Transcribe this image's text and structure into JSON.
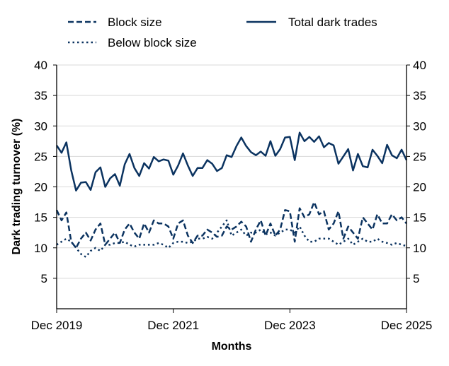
{
  "chart_data": {
    "type": "line",
    "title": "",
    "xlabel": "Months",
    "ylabel": "Dark trading turnover (%)",
    "ylim": [
      0,
      40
    ],
    "yticks": [
      5,
      10,
      15,
      20,
      25,
      30,
      35,
      40
    ],
    "xticks": [
      "Dec 2019",
      "Dec 2021",
      "Dec 2023",
      "Dec 2025"
    ],
    "x_range": [
      "Dec 2019",
      "Dec 2025"
    ],
    "frequency": "monthly",
    "grid": "horizontal",
    "right_axis_mirror": true,
    "legend_position": "top",
    "color": "#0b3360",
    "series": [
      {
        "name": "Block size",
        "style": "dashed",
        "values": [
          16.2,
          14.5,
          15.8,
          11.0,
          10.0,
          11.5,
          12.5,
          11.2,
          13.0,
          14.0,
          10.5,
          11.5,
          12.5,
          10.8,
          13.0,
          14.0,
          12.5,
          11.5,
          14.0,
          12.5,
          14.5,
          14.0,
          14.0,
          13.5,
          11.5,
          14.0,
          14.5,
          12.0,
          10.8,
          12.0,
          12.0,
          13.0,
          12.5,
          11.8,
          12.0,
          13.5,
          13.0,
          13.5,
          14.3,
          13.5,
          11.0,
          13.0,
          14.5,
          12.0,
          14.0,
          12.0,
          13.0,
          16.2,
          16.0,
          11.0,
          16.5,
          15.0,
          15.5,
          17.5,
          15.5,
          16.0,
          13.0,
          14.0,
          16.0,
          11.5,
          13.5,
          12.5,
          11.5,
          15.0,
          14.0,
          13.0,
          15.5,
          14.0,
          14.0,
          15.5,
          14.5,
          15.0,
          14.0
        ]
      },
      {
        "name": "Below block size",
        "style": "dotted",
        "values": [
          10.5,
          11.0,
          11.5,
          11.0,
          10.0,
          9.0,
          8.5,
          9.5,
          10.0,
          9.5,
          10.5,
          10.5,
          10.8,
          10.8,
          11.0,
          10.5,
          10.2,
          10.5,
          10.5,
          10.5,
          10.5,
          10.8,
          10.5,
          10.0,
          10.8,
          11.0,
          11.0,
          10.8,
          11.0,
          11.5,
          11.5,
          11.8,
          11.5,
          12.5,
          13.5,
          14.5,
          12.0,
          12.5,
          13.0,
          12.0,
          12.5,
          12.5,
          13.0,
          12.2,
          12.5,
          12.0,
          12.5,
          13.0,
          13.0,
          12.5,
          13.5,
          12.0,
          11.0,
          11.0,
          11.5,
          11.5,
          11.5,
          11.0,
          10.5,
          11.0,
          11.5,
          10.5,
          11.0,
          11.5,
          11.0,
          11.0,
          11.5,
          11.0,
          10.8,
          10.5,
          10.8,
          10.5,
          10.3
        ]
      },
      {
        "name": "Total dark trades",
        "style": "solid",
        "values": [
          26.8,
          25.6,
          27.3,
          22.7,
          19.4,
          20.7,
          20.8,
          19.5,
          22.4,
          23.2,
          20.0,
          21.4,
          22.1,
          20.2,
          23.7,
          25.4,
          23.1,
          21.8,
          23.9,
          23.0,
          24.9,
          24.2,
          24.5,
          24.3,
          22.0,
          23.5,
          25.5,
          23.5,
          21.8,
          23.1,
          23.1,
          24.4,
          23.8,
          22.6,
          23.1,
          25.2,
          24.9,
          26.7,
          28.1,
          26.7,
          25.7,
          25.2,
          25.8,
          25.1,
          27.5,
          25.1,
          26.2,
          28.1,
          28.2,
          24.4,
          28.9,
          27.5,
          28.2,
          27.4,
          28.3,
          26.5,
          27.2,
          26.8,
          23.8,
          25.0,
          26.2,
          22.7,
          25.4,
          23.4,
          23.2,
          26.1,
          25.1,
          23.9,
          26.9,
          25.2,
          24.7,
          26.1,
          24.4
        ]
      }
    ]
  }
}
